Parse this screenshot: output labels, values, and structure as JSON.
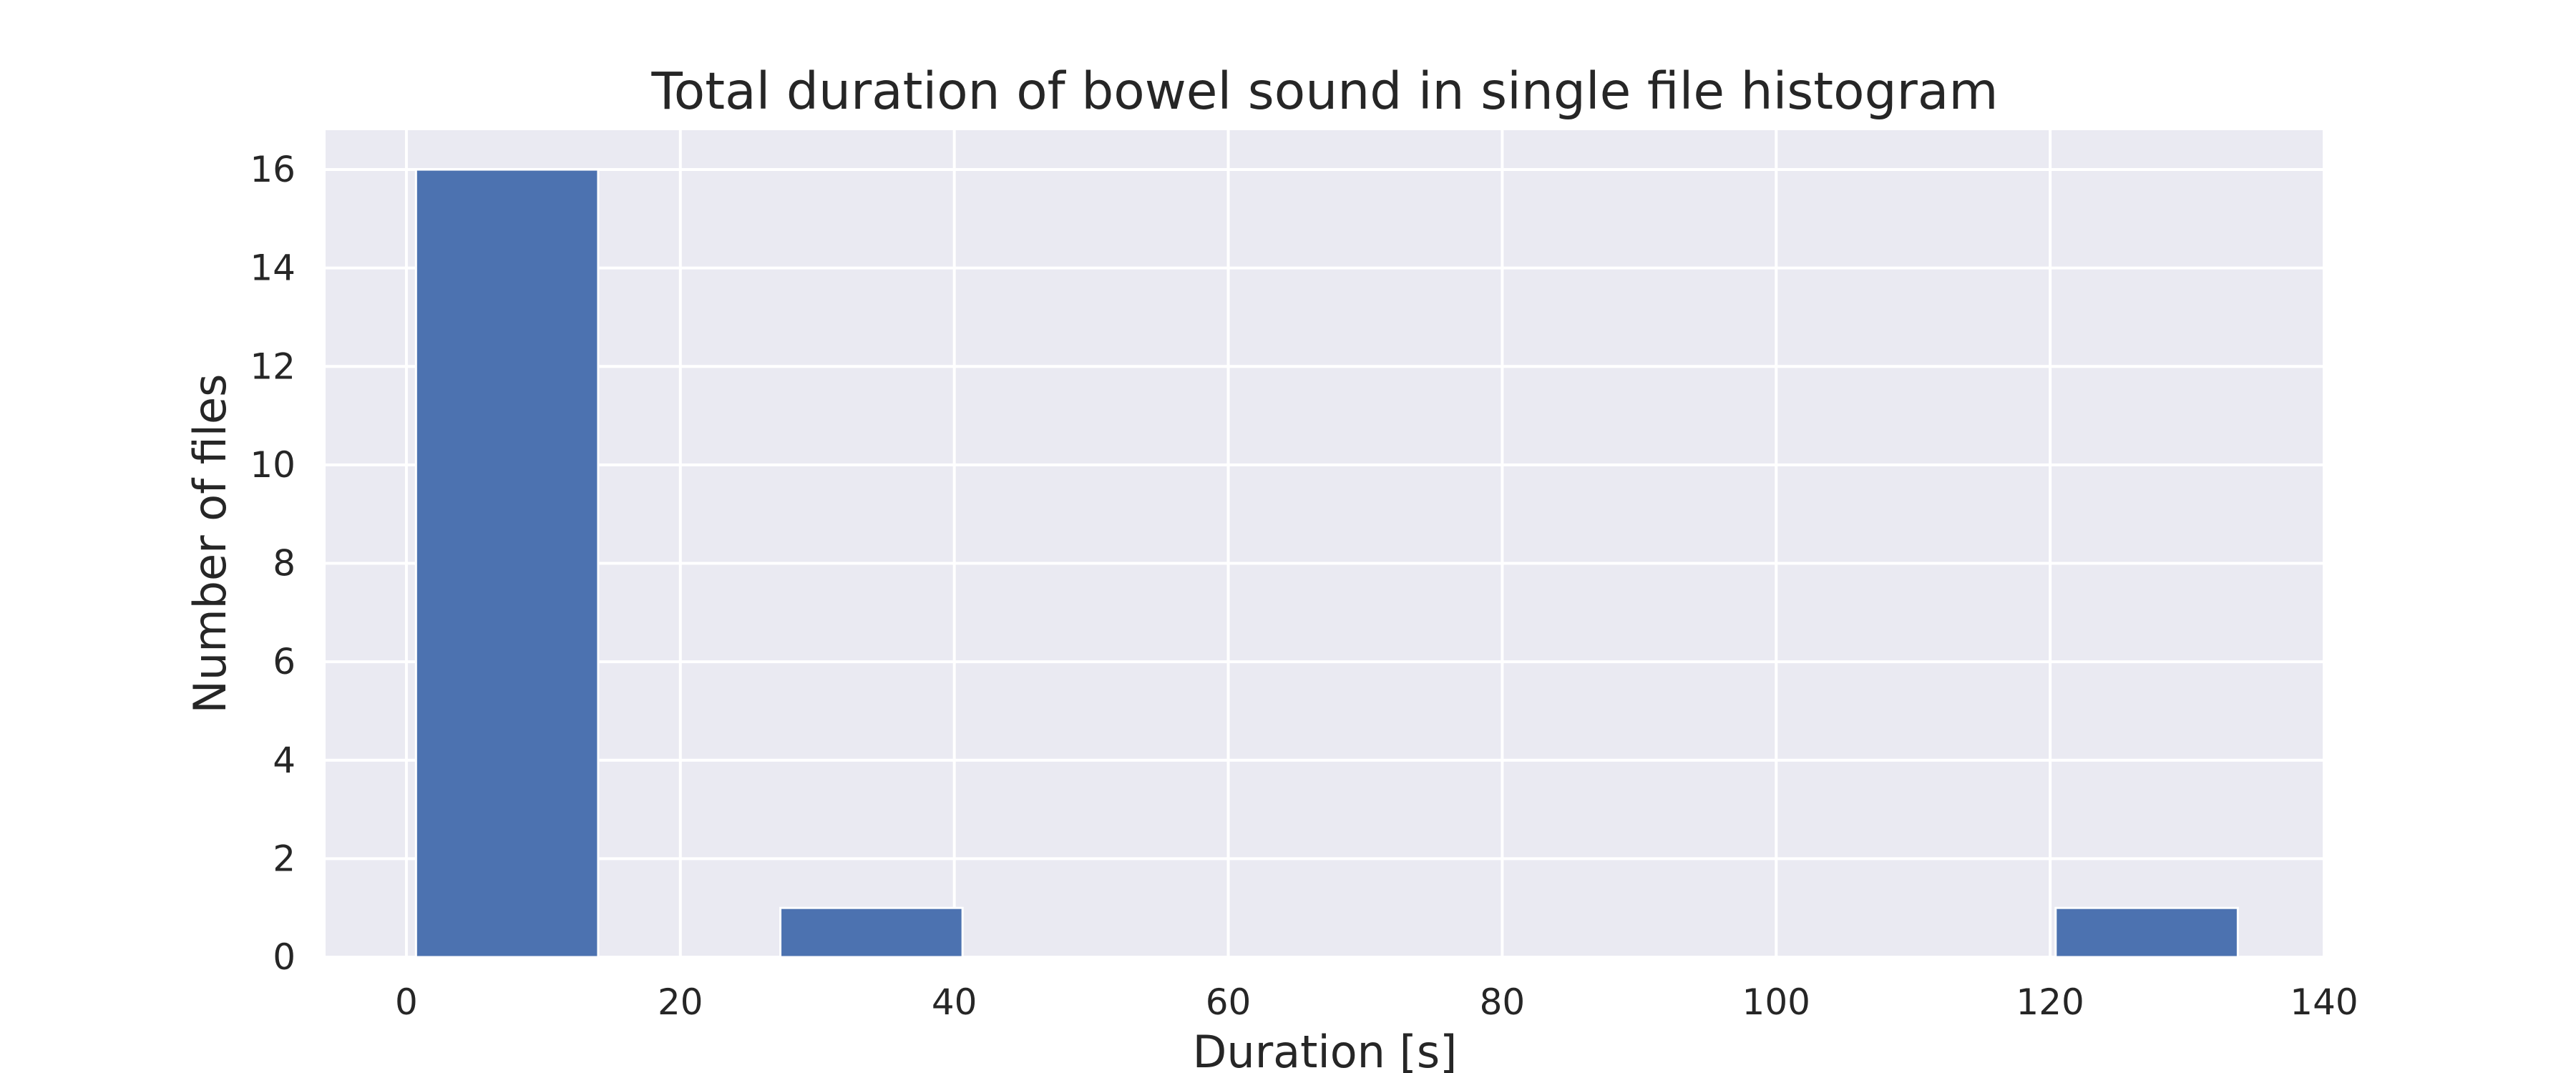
{
  "chart_data": {
    "type": "bar",
    "title": "Total duration of bowel sound in single file histogram",
    "xlabel": "Duration [s]",
    "ylabel": "Number of files",
    "xlim": [
      -5.9,
      140.0
    ],
    "ylim": [
      0,
      16.8
    ],
    "xticks": [
      0,
      20,
      40,
      60,
      80,
      100,
      120,
      140
    ],
    "yticks": [
      0,
      2,
      4,
      6,
      8,
      10,
      12,
      14,
      16
    ],
    "grid": true,
    "legend": "none",
    "bins": [
      {
        "start": 0.7,
        "end": 14.0,
        "count": 16
      },
      {
        "start": 14.0,
        "end": 27.3,
        "count": 0
      },
      {
        "start": 27.3,
        "end": 40.6,
        "count": 1
      },
      {
        "start": 40.6,
        "end": 53.9,
        "count": 0
      },
      {
        "start": 53.9,
        "end": 67.2,
        "count": 0
      },
      {
        "start": 67.2,
        "end": 80.5,
        "count": 0
      },
      {
        "start": 80.5,
        "end": 93.8,
        "count": 0
      },
      {
        "start": 93.8,
        "end": 107.1,
        "count": 0
      },
      {
        "start": 107.1,
        "end": 120.4,
        "count": 0
      },
      {
        "start": 120.4,
        "end": 133.7,
        "count": 1
      }
    ],
    "colors": {
      "bar": "#4c72b0",
      "plot_background": "#eaeaf2",
      "grid": "#ffffff"
    }
  }
}
